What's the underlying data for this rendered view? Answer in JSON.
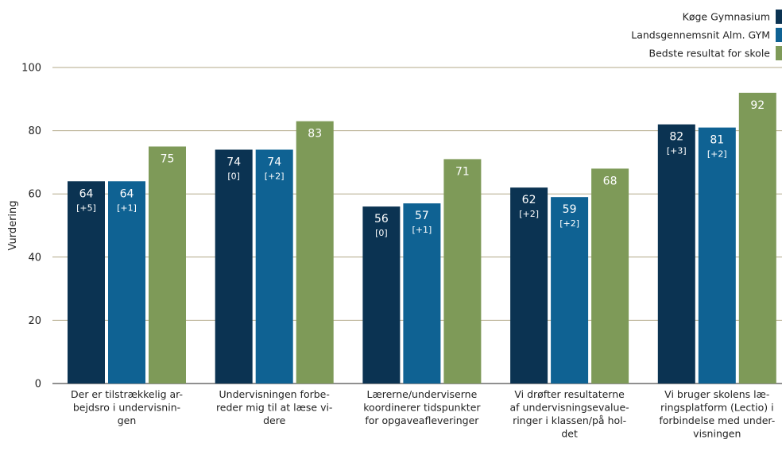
{
  "chart_data": {
    "type": "bar",
    "ylabel": "Vurdering",
    "ylim": [
      0,
      100
    ],
    "yticks": [
      0,
      20,
      40,
      60,
      80,
      100
    ],
    "grid": true,
    "legend_position": "top-right",
    "categories": [
      [
        "Der er tilstrækkelig ar-",
        "bejdsro i undervisnin-",
        "gen"
      ],
      [
        "Undervisningen forbe-",
        "reder mig til at læse vi-",
        "dere"
      ],
      [
        "Lærerne/underviserne",
        "koordinerer tidspunkter",
        "for opgaveafleveringer"
      ],
      [
        "Vi drøfter resultaterne",
        "af undervisningsevalue-",
        "ringer i klassen/på hol-",
        "det"
      ],
      [
        "Vi bruger skolens læ-",
        "ringsplatform (Lectio) i",
        "forbindelse med under-",
        "visningen"
      ]
    ],
    "series": [
      {
        "name": "Køge Gymnasium",
        "color": "#0b3352",
        "values": [
          64,
          74,
          56,
          62,
          82
        ],
        "labels": [
          "64",
          "74",
          "56",
          "62",
          "82"
        ],
        "deltas": [
          "[+5]",
          "[0]",
          "[0]",
          "[+2]",
          "[+3]"
        ]
      },
      {
        "name": "Landsgennemsnit Alm. GYM",
        "color": "#0f6293",
        "values": [
          64,
          74,
          57,
          59,
          81
        ],
        "labels": [
          "64",
          "74",
          "57",
          "59",
          "81"
        ],
        "deltas": [
          "[+1]",
          "[+2]",
          "[+1]",
          "[+2]",
          "[+2]"
        ]
      },
      {
        "name": "Bedste resultat for skole",
        "color": "#7e9a58",
        "values": [
          75,
          83,
          71,
          68,
          92
        ],
        "labels": [
          "75",
          "83",
          "71",
          "68",
          "92"
        ],
        "deltas": [
          "",
          "",
          "",
          "",
          ""
        ]
      }
    ]
  }
}
